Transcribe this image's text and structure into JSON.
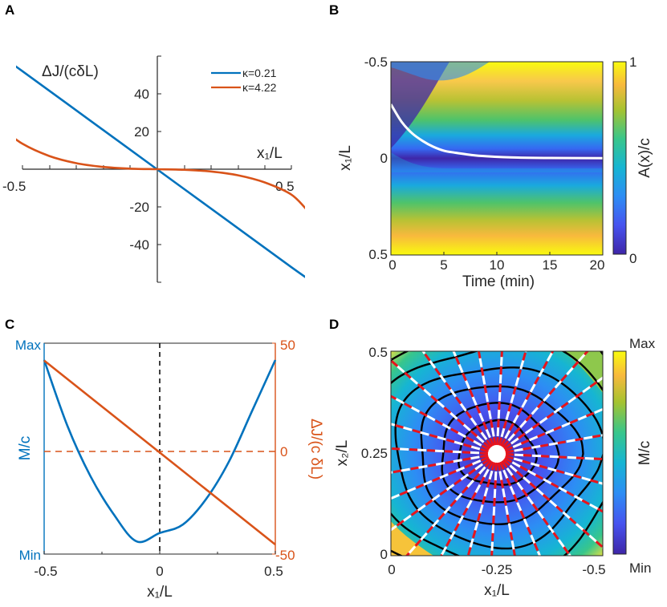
{
  "panel_letters": {
    "a": "A",
    "b": "B",
    "c": "C",
    "d": "D"
  },
  "colors": {
    "blue": "#0072BD",
    "orange": "#D95319",
    "red": "#E8141C",
    "white": "#ffffff",
    "axis": "#262626"
  },
  "chart_data": [
    {
      "panel": "A",
      "type": "line",
      "ylabel": "ΔJ/(cδL)",
      "xlabel": "x₁/L",
      "xlim": [
        -0.5,
        0.5
      ],
      "ylim": [
        -60,
        60
      ],
      "xticklabels": [
        "-0.5",
        "0.5"
      ],
      "yticklabels": [
        "40",
        "20",
        "-20",
        "-40"
      ],
      "yticks": [
        40,
        20,
        -20,
        -40
      ],
      "legend_position": "top-right",
      "series": [
        {
          "name": "κ=0.21",
          "color": "#0072BD",
          "x": [
            -0.58,
            -0.5,
            -0.25,
            0,
            0.25,
            0.5,
            0.57
          ],
          "y": [
            60,
            52,
            26,
            0,
            -26,
            -52,
            -59
          ]
        },
        {
          "name": "κ=4.22",
          "color": "#D95319",
          "x": [
            -0.59,
            -0.5,
            -0.4,
            -0.3,
            -0.2,
            -0.1,
            0,
            0.1,
            0.2,
            0.3,
            0.4,
            0.5,
            0.56
          ],
          "y": [
            23,
            13.5,
            7,
            3.2,
            1.2,
            0.3,
            0,
            -0.3,
            -1.2,
            -3.2,
            -7,
            -13.5,
            -22
          ]
        }
      ]
    },
    {
      "panel": "B",
      "type": "heatmap",
      "xlabel": "Time (min)",
      "ylabel": "x₁/L",
      "xlim": [
        0,
        20
      ],
      "ylim": [
        -0.5,
        0.5
      ],
      "xticklabels": [
        "0",
        "5",
        "10",
        "15",
        "20"
      ],
      "yticklabels": [
        "-0.5",
        "0",
        "0.5"
      ],
      "colorbar_label": "A(x)/c",
      "colorbar_ticks": [
        "1",
        "0"
      ],
      "white_curve": {
        "t": [
          0,
          1,
          2,
          3,
          4,
          5,
          6,
          8,
          10,
          12,
          15,
          20
        ],
        "x": [
          -0.28,
          -0.19,
          -0.13,
          -0.09,
          -0.06,
          -0.04,
          -0.03,
          -0.015,
          -0.008,
          -0.004,
          -0.002,
          -0.001
        ]
      }
    },
    {
      "panel": "C",
      "type": "line",
      "xlabel": "x₁/L",
      "ylabel_left": "M/c",
      "ylabel_right": "ΔJ/(c δL)",
      "xlim": [
        -0.5,
        0.5
      ],
      "xticklabels": [
        "-0.5",
        "0",
        "0.5"
      ],
      "left_yticklabels": [
        "Max",
        "Min"
      ],
      "right_yticklabels": [
        "50",
        "0",
        "-50"
      ],
      "right_ylim": [
        -50,
        50
      ],
      "series": [
        {
          "name": "",
          "color": "#0072BD",
          "axis": "left",
          "x": [
            -0.5,
            -0.4,
            -0.3,
            -0.2,
            -0.1,
            0,
            0.1,
            0.2,
            0.3,
            0.4,
            0.5
          ],
          "y": [
            0.92,
            0.61,
            0.37,
            0.19,
            0.06,
            0.1,
            0.14,
            0.26,
            0.44,
            0.68,
            0.92
          ]
        },
        {
          "name": "",
          "color": "#D95319",
          "axis": "right",
          "x": [
            -0.5,
            0.5
          ],
          "y": [
            42,
            -43
          ]
        }
      ]
    },
    {
      "panel": "D",
      "type": "heatmap",
      "xlabel": "x₁/L",
      "ylabel": "x₂/L",
      "xticklabels": [
        "0",
        "-0.25",
        "-0.5"
      ],
      "yticklabels": [
        "0.5",
        "0.25",
        "0"
      ],
      "colorbar_label": "M/c",
      "colorbar_ticks": [
        "Max",
        "Min"
      ],
      "center": [
        -0.25,
        0.25
      ]
    }
  ]
}
